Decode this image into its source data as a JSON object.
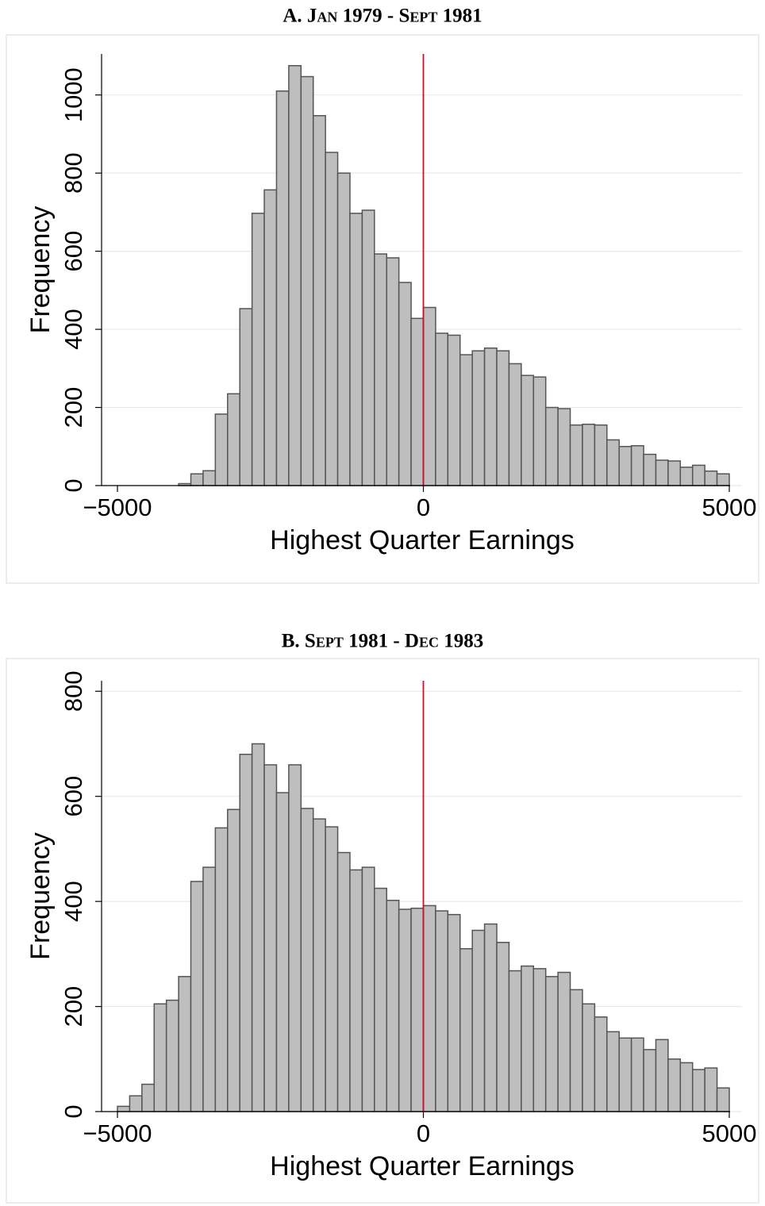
{
  "chart_data": [
    {
      "type": "histogram",
      "title": "A. Jan 1979 - Sept 1981",
      "xlabel": "Highest Quarter Earnings",
      "ylabel": "Frequency",
      "bins": [
        -4000,
        -3800,
        -3600,
        -3400,
        -3200,
        -3000,
        -2800,
        -2600,
        -2400,
        -2200,
        -2000,
        -1800,
        -1600,
        -1400,
        -1200,
        -1000,
        -800,
        -600,
        -400,
        -200,
        0,
        200,
        400,
        600,
        800,
        1000,
        1200,
        1400,
        1600,
        1800,
        2000,
        2200,
        2400,
        2600,
        2800,
        3000,
        3200,
        3400,
        3600,
        3800,
        4000,
        4200,
        4400,
        4600,
        4800,
        5000
      ],
      "counts": [
        5,
        30,
        38,
        183,
        235,
        453,
        697,
        757,
        1010,
        1075,
        1047,
        947,
        853,
        800,
        697,
        705,
        593,
        583,
        520,
        428,
        456,
        390,
        385,
        335,
        345,
        352,
        345,
        312,
        282,
        278,
        200,
        197,
        155,
        157,
        155,
        117,
        100,
        102,
        80,
        65,
        63,
        47,
        52,
        37,
        30
      ],
      "xlim": [
        -5000,
        5000
      ],
      "ylim": [
        0,
        1105
      ],
      "xticks": [
        {
          "value": -5000,
          "label": "−5000"
        },
        0,
        5000
      ],
      "yticks": [
        0,
        200,
        400,
        600,
        800,
        1000
      ],
      "grid": true,
      "color": "#bebebe",
      "edgecolor": "#555555",
      "reference_line": 0,
      "reference_color": "#c8102e"
    },
    {
      "type": "histogram",
      "title": "B. Sept 1981 - Dec 1983",
      "xlabel": "Highest Quarter Earnings",
      "ylabel": "Frequency",
      "bins": [
        -5000,
        -4800,
        -4600,
        -4400,
        -4200,
        -4000,
        -3800,
        -3600,
        -3400,
        -3200,
        -3000,
        -2800,
        -2600,
        -2400,
        -2200,
        -2000,
        -1800,
        -1600,
        -1400,
        -1200,
        -1000,
        -800,
        -600,
        -400,
        -200,
        0,
        200,
        400,
        600,
        800,
        1000,
        1200,
        1400,
        1600,
        1800,
        2000,
        2200,
        2400,
        2600,
        2800,
        3000,
        3200,
        3400,
        3600,
        3800,
        4000,
        4200,
        4400,
        4600,
        4800,
        5000
      ],
      "counts": [
        10,
        30,
        52,
        205,
        212,
        257,
        438,
        465,
        540,
        575,
        680,
        700,
        660,
        607,
        660,
        577,
        557,
        542,
        493,
        460,
        465,
        425,
        402,
        385,
        387,
        392,
        382,
        375,
        310,
        345,
        357,
        322,
        268,
        277,
        272,
        257,
        265,
        232,
        205,
        180,
        152,
        140,
        140,
        118,
        137,
        100,
        93,
        80,
        83,
        45
      ],
      "xlim": [
        -5000,
        5000
      ],
      "ylim": [
        0,
        820
      ],
      "xticks": [
        {
          "value": -5000,
          "label": "−5000"
        },
        0,
        5000
      ],
      "yticks": [
        0,
        200,
        400,
        600,
        800
      ],
      "grid": true,
      "color": "#bebebe",
      "edgecolor": "#555555",
      "reference_line": 0,
      "reference_color": "#c8102e"
    }
  ]
}
